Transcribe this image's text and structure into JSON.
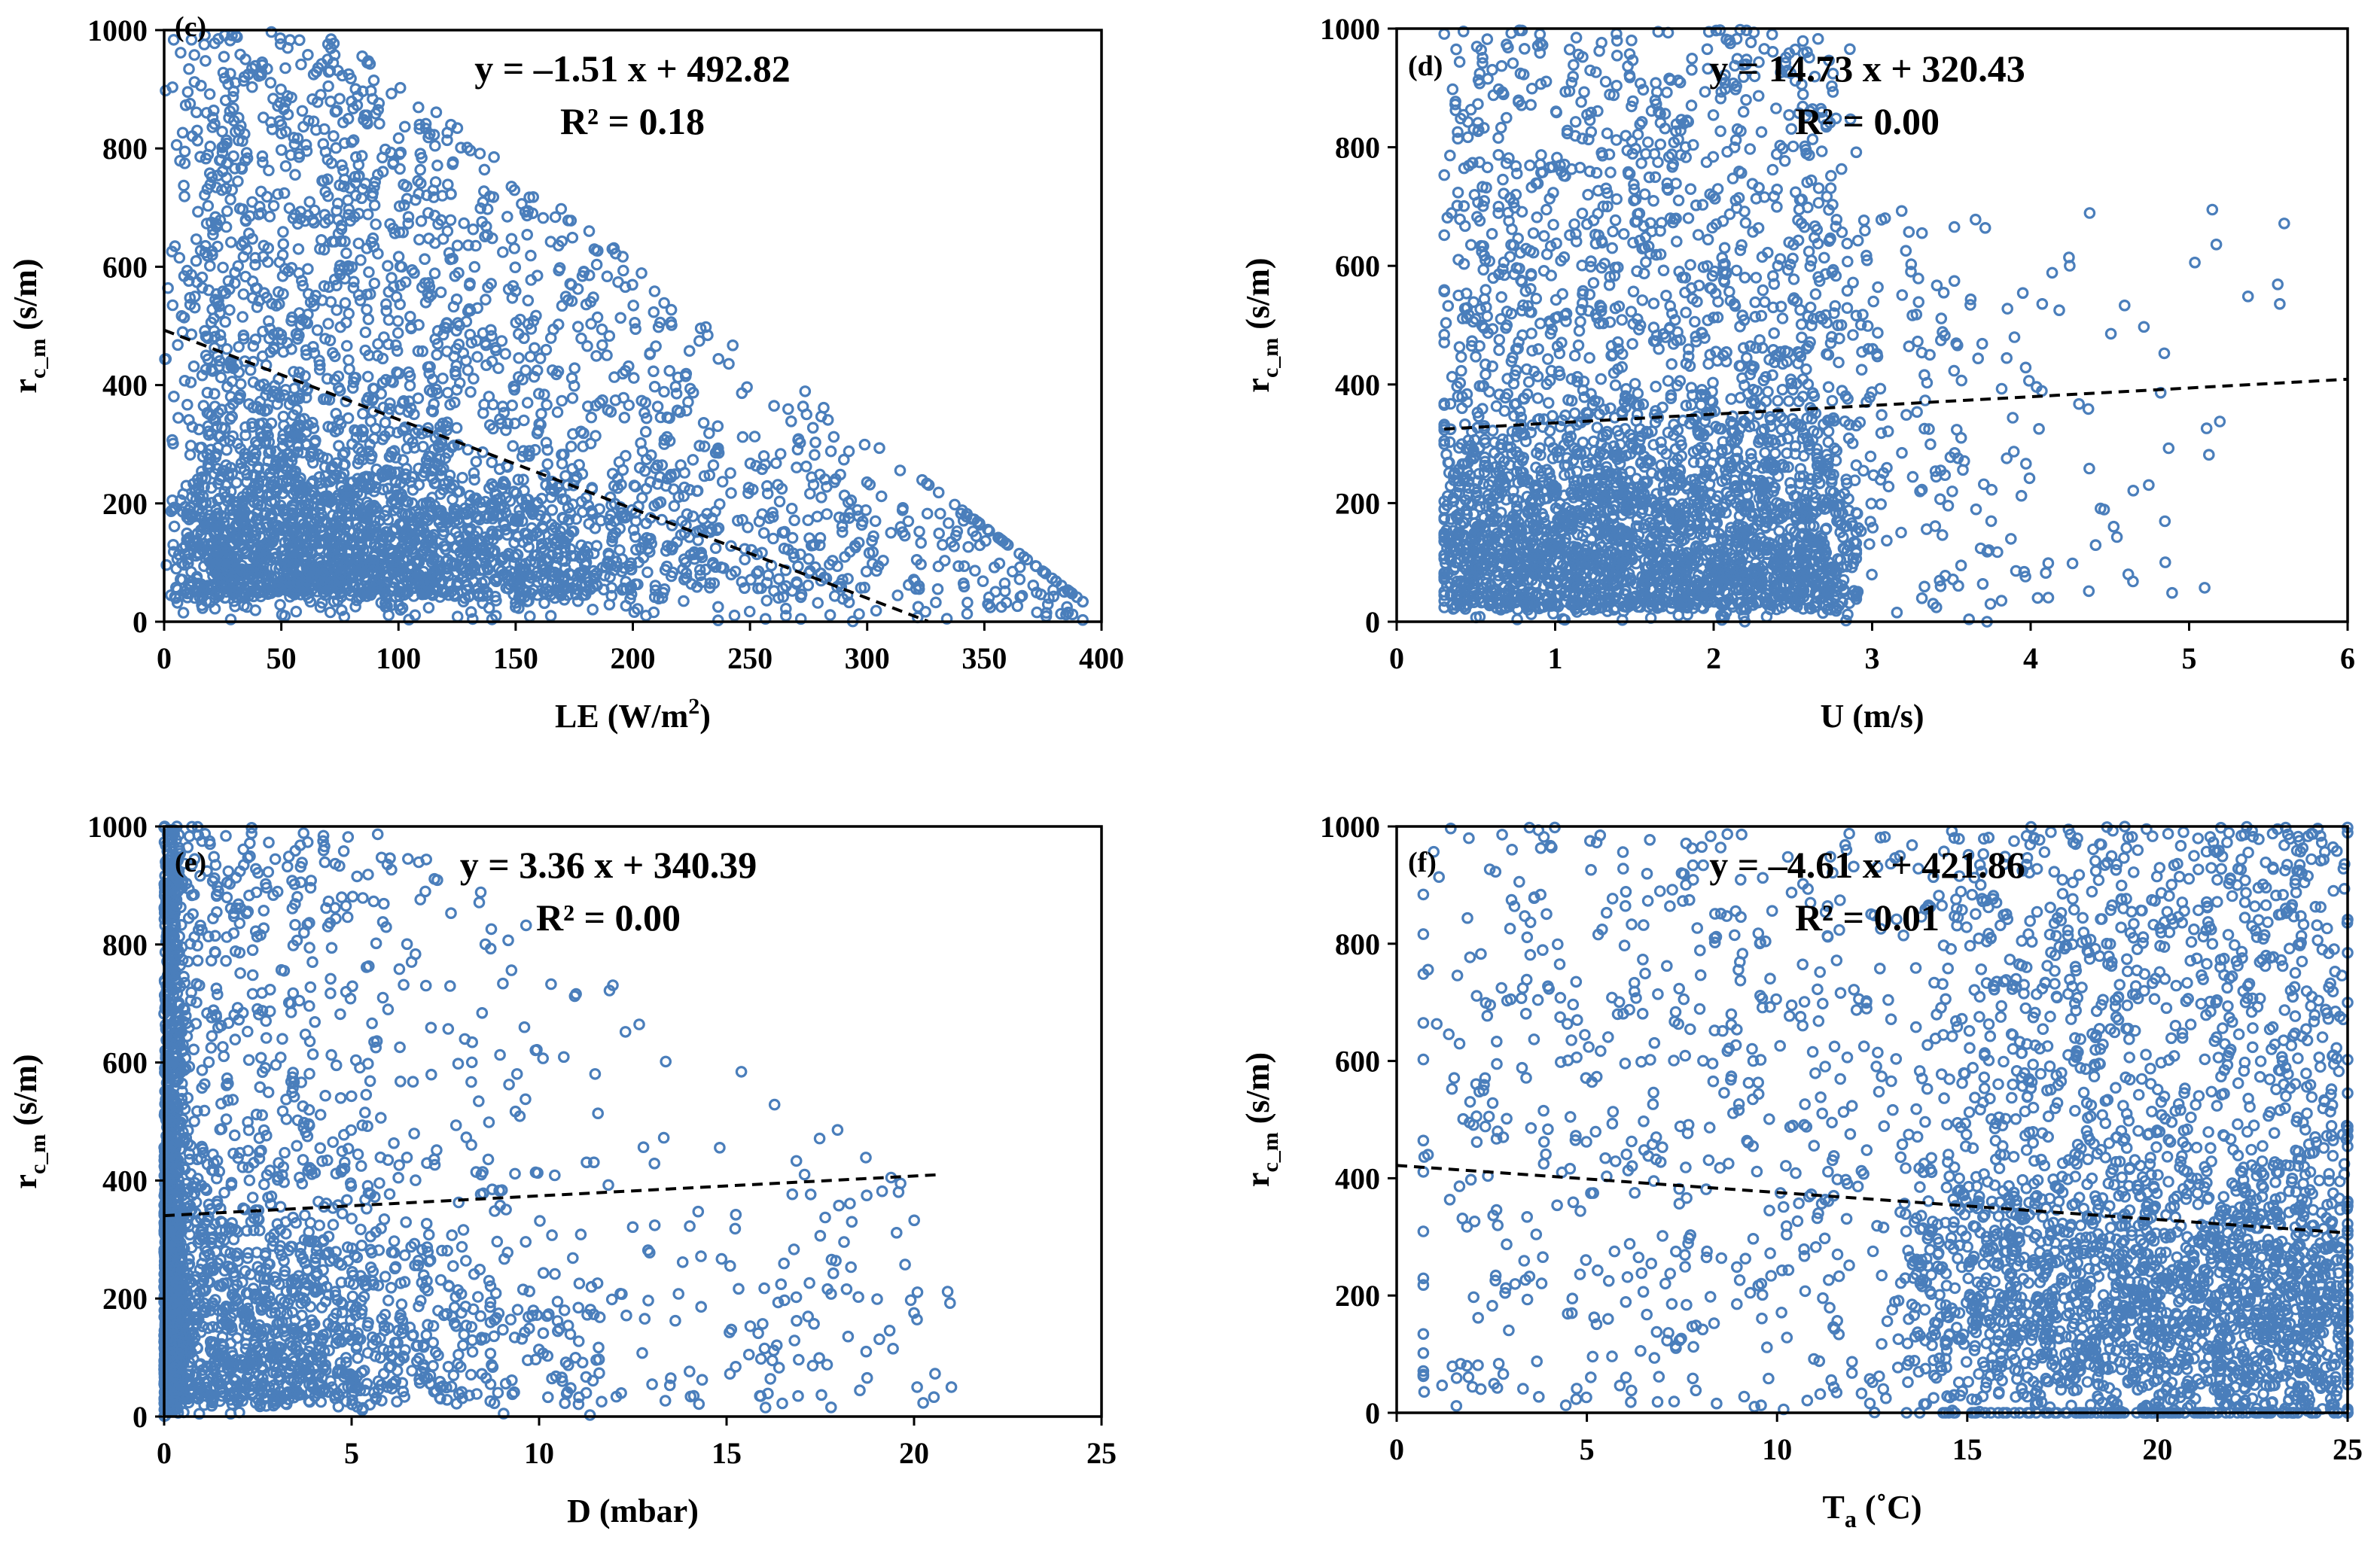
{
  "figure": {
    "description_free": true
  },
  "style": {
    "point_color": "#4a7ebb",
    "trend_color": "#000000",
    "frame_color": "#000000"
  },
  "chart_data": [
    {
      "type": "scatter",
      "panel": "(c)",
      "xlabel_main": "LE (W/m",
      "xlabel_sup": "2",
      "xlabel_end": ")",
      "ylabel": "r",
      "ylabel_sub": "c_m",
      "ylabel_unit": " (s/m)",
      "xlim": [
        0,
        400
      ],
      "ylim": [
        0,
        1000
      ],
      "xticks": [
        0,
        50,
        100,
        150,
        200,
        250,
        300,
        350,
        400
      ],
      "yticks": [
        0,
        200,
        400,
        600,
        800,
        1000
      ],
      "equation": "y = –1.51 x + 492.82",
      "r2": "R² = 0.18",
      "trend": {
        "slope": -1.51,
        "intercept": 492.82,
        "x_start": 0,
        "x_end": 326
      },
      "points_summary": "dense cloud ~4000 pts; upper bound falls from 1000 at LE≈60 to ~0 at LE≈390",
      "seed": 11
    },
    {
      "type": "scatter",
      "panel": "(d)",
      "xlabel_main": "U (m/s)",
      "xlabel_sup": "",
      "xlabel_end": "",
      "ylabel": "r",
      "ylabel_sub": "c_m",
      "ylabel_unit": " (s/m)",
      "xlim": [
        0,
        6
      ],
      "ylim": [
        0,
        1000
      ],
      "xticks": [
        0,
        1,
        2,
        3,
        4,
        5,
        6
      ],
      "yticks": [
        0,
        200,
        400,
        600,
        800,
        1000
      ],
      "equation": "y = 14.73 x + 320.43",
      "r2": "R² = 0.00",
      "trend": {
        "slope": 14.73,
        "intercept": 320.43,
        "x_start": 0.3,
        "x_end": 6
      },
      "points_summary": "dense block U 0.3–2.7, sparse scatter up to U≈5.6",
      "seed": 23
    },
    {
      "type": "scatter",
      "panel": "(e)",
      "xlabel_main": "D (mbar)",
      "xlabel_sup": "",
      "xlabel_end": "",
      "ylabel": "r",
      "ylabel_sub": "c_m",
      "ylabel_unit": " (s/m)",
      "xlim": [
        0,
        25
      ],
      "ylim": [
        0,
        1000
      ],
      "xticks": [
        0,
        5,
        10,
        15,
        20,
        25
      ],
      "yticks": [
        0,
        200,
        400,
        600,
        800,
        1000
      ],
      "equation": "y = 3.36 x + 340.39",
      "r2": "R² = 0.00",
      "trend": {
        "slope": 3.36,
        "intercept": 340.39,
        "x_start": 0,
        "x_end": 20.6
      },
      "points_summary": "dense column near D=0, thinning toward D≈21",
      "seed": 37
    },
    {
      "type": "scatter",
      "panel": "(f)",
      "xlabel_main": "T",
      "xlabel_sub": "a",
      "xlabel_end": " (˚C)",
      "xlabel_sup": "",
      "ylabel": "r",
      "ylabel_sub": "c_m",
      "ylabel_unit": " (s/m)",
      "xlim": [
        0,
        25
      ],
      "ylim": [
        0,
        1000
      ],
      "xticks": [
        0,
        5,
        10,
        15,
        20,
        25
      ],
      "yticks": [
        0,
        200,
        400,
        600,
        800,
        1000
      ],
      "equation": "y = –4.61 x + 421.86",
      "r2": "R² = 0.01",
      "trend": {
        "slope": -4.61,
        "intercept": 421.86,
        "x_start": 0,
        "x_end": 25
      },
      "points_summary": "sparse at low Ta, dense cluster Ta 13–25, densest near 200 s/m",
      "seed": 53
    }
  ]
}
